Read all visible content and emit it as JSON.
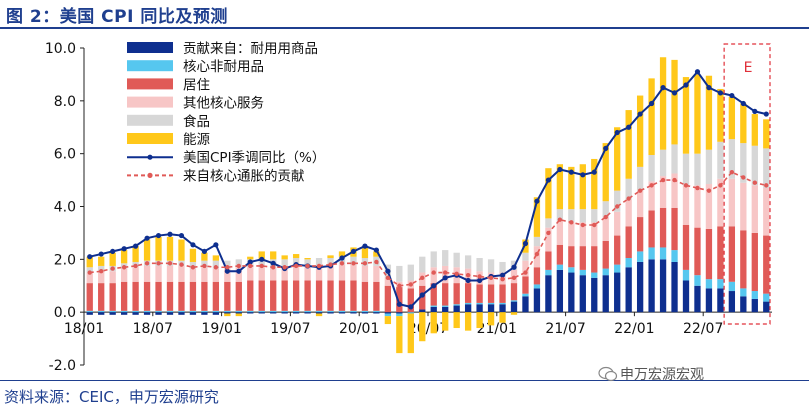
{
  "figure_title": "图 2：美国 CPI 同比及预测",
  "source_note": "资料来源：CEIC，申万宏源研究",
  "watermark": "申万宏源宏观",
  "forecast_marker": "E",
  "colors": {
    "durable": "#0e2f8f",
    "core_nondurable": "#56c7ef",
    "shelter": "#e05a57",
    "other_core_services": "#f7c6c6",
    "food": "#d7d7d7",
    "energy": "#ffc81a",
    "cpi_line": "#0e2f8f",
    "core_line": "#e05a57",
    "forecast_box": "#e0303a",
    "title": "#1f3f8f"
  },
  "chart_data": {
    "type": "bar",
    "stacked": true,
    "title": "",
    "xlabel": "",
    "ylabel": "",
    "ylim": [
      -2.0,
      10.0
    ],
    "yticks": [
      "-2.0",
      "0.0",
      "2.0",
      "4.0",
      "6.0",
      "8.0",
      "10.0"
    ],
    "ytick_values": [
      -2,
      0,
      2,
      4,
      6,
      8,
      10
    ],
    "xtick_labels": [
      "18/01",
      "18/07",
      "19/01",
      "19/07",
      "20/01",
      "20/07",
      "21/01",
      "21/07",
      "22/01",
      "22/07"
    ],
    "xtick_index": [
      0,
      6,
      12,
      18,
      24,
      30,
      36,
      42,
      48,
      54
    ],
    "n_periods": 60,
    "forecast_start_index": 56,
    "legend_position": "top-left",
    "series": [
      {
        "name": "贡献来自：耐用用商品",
        "kind": "bar",
        "color_key": "durable",
        "values": [
          -0.1,
          -0.1,
          -0.1,
          -0.1,
          -0.1,
          -0.1,
          -0.1,
          -0.1,
          -0.1,
          -0.1,
          -0.1,
          -0.1,
          -0.05,
          -0.05,
          -0.05,
          -0.05,
          -0.05,
          -0.05,
          -0.05,
          -0.05,
          -0.05,
          -0.05,
          -0.05,
          -0.05,
          -0.05,
          -0.05,
          -0.05,
          -0.05,
          0.0,
          0.1,
          0.2,
          0.2,
          0.25,
          0.3,
          0.3,
          0.3,
          0.3,
          0.4,
          0.6,
          0.9,
          1.4,
          1.6,
          1.5,
          1.4,
          1.3,
          1.4,
          1.5,
          1.7,
          1.9,
          2.0,
          2.0,
          1.9,
          1.2,
          1.0,
          0.9,
          0.9,
          0.8,
          0.6,
          0.5,
          0.4
        ]
      },
      {
        "name": "核心非耐用品",
        "kind": "bar",
        "color_key": "core_nondurable",
        "values": [
          0.05,
          0.05,
          0.05,
          0.05,
          0.05,
          0.05,
          0.05,
          0.05,
          0.05,
          0.05,
          0.05,
          0.05,
          0.05,
          0.05,
          0.05,
          0.05,
          0.05,
          0.05,
          0.05,
          0.05,
          0.05,
          0.05,
          0.05,
          0.05,
          0.05,
          0.05,
          -0.1,
          -0.1,
          -0.05,
          0.0,
          0.05,
          0.05,
          0.05,
          0.05,
          0.05,
          0.05,
          0.05,
          0.05,
          0.1,
          0.15,
          0.2,
          0.2,
          0.2,
          0.2,
          0.2,
          0.25,
          0.3,
          0.35,
          0.4,
          0.45,
          0.45,
          0.45,
          0.4,
          0.4,
          0.35,
          0.35,
          0.35,
          0.3,
          0.3,
          0.3
        ]
      },
      {
        "name": "居住",
        "kind": "bar",
        "color_key": "shelter",
        "values": [
          1.05,
          1.05,
          1.05,
          1.1,
          1.1,
          1.1,
          1.1,
          1.1,
          1.1,
          1.1,
          1.1,
          1.1,
          1.1,
          1.1,
          1.15,
          1.15,
          1.15,
          1.15,
          1.15,
          1.15,
          1.15,
          1.15,
          1.15,
          1.15,
          1.1,
          1.1,
          1.0,
          0.95,
          0.9,
          0.9,
          0.85,
          0.85,
          0.8,
          0.75,
          0.7,
          0.7,
          0.7,
          0.65,
          0.65,
          0.65,
          0.7,
          0.75,
          0.8,
          0.9,
          1.0,
          1.05,
          1.1,
          1.2,
          1.3,
          1.4,
          1.5,
          1.6,
          1.7,
          1.8,
          1.9,
          2.0,
          2.1,
          2.2,
          2.2,
          2.2
        ]
      },
      {
        "name": "其他核心服务",
        "kind": "bar",
        "color_key": "other_core_services",
        "values": [
          0.4,
          0.45,
          0.45,
          0.5,
          0.55,
          0.6,
          0.6,
          0.6,
          0.6,
          0.5,
          0.55,
          0.5,
          0.5,
          0.55,
          0.5,
          0.5,
          0.5,
          0.5,
          0.55,
          0.5,
          0.55,
          0.55,
          0.6,
          0.6,
          0.6,
          0.6,
          0.3,
          0.2,
          0.3,
          0.5,
          0.6,
          0.65,
          0.6,
          0.55,
          0.5,
          0.45,
          0.45,
          0.5,
          0.6,
          0.8,
          0.9,
          0.9,
          0.9,
          0.9,
          0.9,
          0.9,
          0.9,
          1.0,
          1.0,
          1.1,
          1.2,
          1.3,
          1.5,
          1.6,
          1.7,
          1.8,
          1.8,
          1.8,
          1.8,
          1.8
        ]
      },
      {
        "name": "食品",
        "kind": "bar",
        "color_key": "food",
        "values": [
          0.2,
          0.2,
          0.2,
          0.2,
          0.2,
          0.2,
          0.2,
          0.2,
          0.2,
          0.25,
          0.25,
          0.3,
          0.3,
          0.3,
          0.3,
          0.3,
          0.3,
          0.3,
          0.3,
          0.3,
          0.3,
          0.3,
          0.3,
          0.3,
          0.3,
          0.35,
          0.5,
          0.6,
          0.6,
          0.6,
          0.6,
          0.6,
          0.55,
          0.5,
          0.5,
          0.5,
          0.4,
          0.35,
          0.3,
          0.35,
          0.35,
          0.45,
          0.5,
          0.5,
          0.5,
          0.6,
          0.8,
          0.8,
          0.9,
          1.0,
          1.0,
          1.1,
          1.2,
          1.2,
          1.3,
          1.4,
          1.5,
          1.5,
          1.5,
          1.5
        ]
      },
      {
        "name": "能源",
        "kind": "bar",
        "color_key": "energy",
        "values": [
          0.4,
          0.35,
          0.5,
          0.5,
          0.6,
          0.8,
          0.9,
          0.9,
          0.8,
          0.5,
          0.3,
          0.2,
          -0.1,
          -0.1,
          0.1,
          0.3,
          0.3,
          0.15,
          0.15,
          0.05,
          -0.1,
          0.1,
          0.2,
          0.35,
          0.4,
          0.2,
          -0.3,
          -1.4,
          -1.5,
          -1.1,
          -0.8,
          -0.7,
          -0.6,
          -0.7,
          -0.6,
          -0.5,
          -0.4,
          -0.1,
          0.5,
          1.5,
          1.9,
          1.7,
          1.6,
          1.7,
          1.9,
          2.2,
          2.4,
          2.6,
          2.7,
          2.9,
          3.5,
          3.2,
          2.9,
          3.0,
          2.8,
          2.0,
          1.6,
          1.5,
          1.2,
          1.1
        ]
      },
      {
        "name": "美国CPI季调同比（%）",
        "kind": "line",
        "color_key": "cpi_line",
        "values": [
          2.1,
          2.2,
          2.3,
          2.4,
          2.5,
          2.8,
          2.9,
          2.95,
          2.9,
          2.55,
          2.3,
          2.55,
          1.55,
          1.55,
          1.9,
          2.0,
          1.85,
          1.65,
          1.8,
          1.75,
          1.7,
          1.75,
          2.05,
          2.3,
          2.5,
          2.35,
          1.55,
          0.3,
          0.2,
          0.65,
          1.0,
          1.3,
          1.4,
          1.2,
          1.2,
          1.35,
          1.4,
          1.7,
          2.6,
          4.2,
          5.0,
          5.4,
          5.3,
          5.2,
          5.3,
          6.2,
          6.8,
          7.0,
          7.5,
          7.9,
          8.5,
          8.3,
          8.6,
          9.1,
          8.5,
          8.3,
          8.2,
          7.9,
          7.6,
          7.5
        ]
      },
      {
        "name": "来自核心通胀的贡献",
        "kind": "line",
        "dashed": true,
        "color_key": "core_line",
        "values": [
          1.5,
          1.55,
          1.65,
          1.7,
          1.75,
          1.85,
          1.85,
          1.85,
          1.8,
          1.7,
          1.75,
          1.7,
          1.7,
          1.75,
          1.75,
          1.75,
          1.7,
          1.7,
          1.75,
          1.75,
          1.75,
          1.8,
          1.85,
          1.85,
          1.85,
          1.9,
          1.3,
          1.0,
          1.05,
          1.3,
          1.5,
          1.5,
          1.45,
          1.4,
          1.35,
          1.3,
          1.25,
          1.3,
          1.5,
          2.2,
          3.0,
          3.5,
          3.4,
          3.3,
          3.3,
          3.6,
          4.0,
          4.3,
          4.6,
          4.8,
          5.0,
          5.0,
          4.8,
          4.7,
          4.6,
          4.8,
          5.3,
          5.1,
          4.9,
          4.8
        ]
      }
    ]
  }
}
